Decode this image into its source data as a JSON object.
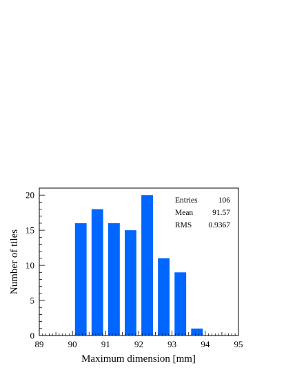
{
  "chart_data": {
    "type": "bar",
    "title": "",
    "xlabel": "Maximum dimension [mm]",
    "ylabel": "Number of tiles",
    "xlim": [
      89,
      95
    ],
    "ylim": [
      0,
      21
    ],
    "x_ticks": [
      "89",
      "90",
      "91",
      "92",
      "93",
      "94",
      "95"
    ],
    "y_ticks": [
      "0",
      "5",
      "10",
      "15",
      "20"
    ],
    "bin_width": 0.5,
    "bin_centers": [
      90.25,
      90.75,
      91.25,
      91.75,
      92.25,
      92.75,
      93.25,
      93.75
    ],
    "values": [
      16,
      18,
      16,
      15,
      20,
      11,
      9,
      1
    ],
    "bar_color": "#0066ff",
    "grid": false,
    "stats_box": {
      "placement": "top-right",
      "rows": [
        {
          "label": "Entries",
          "value": "106"
        },
        {
          "label": "Mean",
          "value": "91.57"
        },
        {
          "label": "RMS",
          "value": "0.9367"
        }
      ]
    }
  }
}
